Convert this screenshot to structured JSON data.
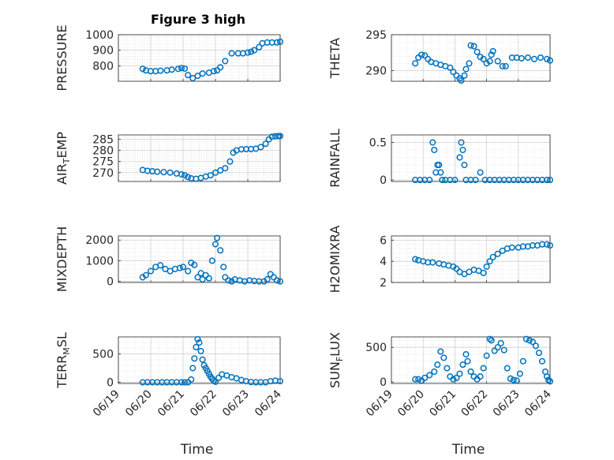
{
  "figure_title": "Figure 3 high",
  "chart_data": [
    {
      "type": "scatter",
      "ylabel": "PRESSURE",
      "ylabel_sub": "",
      "ylabel_tail": "",
      "ylim": [
        700,
        1000
      ],
      "yticks": [
        800,
        900,
        1000
      ],
      "xlim": [
        0,
        5
      ],
      "xticks": [
        0,
        1,
        2,
        3,
        4,
        5
      ],
      "xticklabels": [
        "06/19",
        "06/20",
        "06/21",
        "06/22",
        "06/23",
        "06/24"
      ],
      "xlabel": "",
      "grid": true,
      "x": [
        0.75,
        0.85,
        1.0,
        1.15,
        1.3,
        1.5,
        1.65,
        1.85,
        1.95,
        2.05,
        2.15,
        2.3,
        2.45,
        2.6,
        2.8,
        2.95,
        3.05,
        3.15,
        3.3,
        3.5,
        3.7,
        3.85,
        4.0,
        4.1,
        4.2,
        4.35,
        4.45,
        4.6,
        4.75,
        4.9,
        5.0
      ],
      "y": [
        780,
        770,
        765,
        765,
        768,
        770,
        775,
        780,
        785,
        782,
        740,
        720,
        735,
        750,
        755,
        765,
        770,
        790,
        830,
        880,
        880,
        880,
        885,
        890,
        900,
        920,
        945,
        950,
        950,
        950,
        955
      ]
    },
    {
      "type": "scatter",
      "ylabel": "THETA",
      "ylabel_sub": "",
      "ylabel_tail": "",
      "ylim": [
        288.5,
        295
      ],
      "yticks": [
        290,
        295
      ],
      "xlim": [
        0,
        5
      ],
      "xticks": [
        0,
        1,
        2,
        3,
        4,
        5
      ],
      "xticklabels": [
        "06/19",
        "06/20",
        "06/21",
        "06/22",
        "06/23",
        "06/24"
      ],
      "xlabel": "",
      "grid": true,
      "x": [
        0.75,
        0.85,
        0.95,
        1.05,
        1.15,
        1.25,
        1.4,
        1.55,
        1.7,
        1.85,
        1.95,
        2.05,
        2.15,
        2.2,
        2.3,
        2.35,
        2.45,
        2.5,
        2.6,
        2.7,
        2.8,
        2.9,
        3.0,
        3.1,
        3.15,
        3.2,
        3.35,
        3.5,
        3.6,
        3.8,
        3.95,
        4.1,
        4.3,
        4.5,
        4.7,
        4.9,
        5.0
      ],
      "y": [
        291,
        291.8,
        292.2,
        292.1,
        291.6,
        291.2,
        291.0,
        290.8,
        290.6,
        290.4,
        289.8,
        289.3,
        288.9,
        288.6,
        289.3,
        290.2,
        291.0,
        293.5,
        293.4,
        292.6,
        291.9,
        291.6,
        291.0,
        291.3,
        292.2,
        292.7,
        291.3,
        290.6,
        290.6,
        291.8,
        291.8,
        291.7,
        291.8,
        291.6,
        291.8,
        291.6,
        291.4
      ]
    },
    {
      "type": "scatter",
      "ylabel": "AIR",
      "ylabel_sub": "T",
      "ylabel_tail": "EMP",
      "ylim": [
        266,
        287
      ],
      "yticks": [
        270,
        275,
        280,
        285
      ],
      "xlim": [
        0,
        5
      ],
      "xticks": [
        0,
        1,
        2,
        3,
        4,
        5
      ],
      "xticklabels": [
        "06/19",
        "06/20",
        "06/21",
        "06/22",
        "06/23",
        "06/24"
      ],
      "xlabel": "",
      "grid": true,
      "x": [
        0.75,
        0.9,
        1.05,
        1.2,
        1.4,
        1.6,
        1.8,
        1.95,
        2.05,
        2.15,
        2.25,
        2.4,
        2.55,
        2.7,
        2.85,
        3.0,
        3.15,
        3.3,
        3.45,
        3.55,
        3.65,
        3.8,
        3.95,
        4.1,
        4.25,
        4.4,
        4.55,
        4.65,
        4.75,
        4.85,
        4.95,
        5.0
      ],
      "y": [
        271.2,
        270.8,
        270.6,
        270.4,
        270.2,
        270.0,
        269.6,
        269.2,
        268.8,
        268.0,
        267.4,
        267.2,
        267.6,
        268.2,
        268.8,
        270.0,
        271.0,
        272.0,
        275.0,
        279.0,
        280.0,
        280.5,
        280.6,
        280.6,
        280.8,
        281.5,
        283.0,
        285.0,
        286.2,
        286.4,
        286.5,
        286.5
      ]
    },
    {
      "type": "scatter",
      "ylabel": "RAINFALL",
      "ylabel_sub": "",
      "ylabel_tail": "",
      "ylim": [
        -0.02,
        0.6
      ],
      "yticks": [
        0,
        0.5
      ],
      "xlim": [
        0,
        5
      ],
      "xticks": [
        0,
        1,
        2,
        3,
        4,
        5
      ],
      "xticklabels": [
        "06/19",
        "06/20",
        "06/21",
        "06/22",
        "06/23",
        "06/24"
      ],
      "xlabel": "",
      "grid": true,
      "x": [
        0.75,
        0.9,
        1.05,
        1.2,
        1.3,
        1.35,
        1.4,
        1.45,
        1.5,
        1.55,
        1.6,
        1.7,
        1.85,
        2.0,
        2.15,
        2.2,
        2.25,
        2.3,
        2.35,
        2.5,
        2.65,
        2.8,
        2.95,
        3.1,
        3.25,
        3.4,
        3.55,
        3.7,
        3.85,
        4.0,
        4.15,
        4.3,
        4.45,
        4.6,
        4.75,
        4.9,
        5.0
      ],
      "y": [
        0,
        0,
        0,
        0,
        0.5,
        0.4,
        0.1,
        0.2,
        0.2,
        0.1,
        0,
        0,
        0,
        0,
        0.3,
        0.5,
        0.4,
        0.2,
        0,
        0,
        0,
        0.1,
        0,
        0,
        0,
        0,
        0,
        0,
        0,
        0,
        0,
        0,
        0,
        0,
        0,
        0,
        0
      ]
    },
    {
      "type": "scatter",
      "ylabel": "MIXDEPTH",
      "ylabel_sub": "",
      "ylabel_tail": "",
      "ylim": [
        -50,
        2200
      ],
      "yticks": [
        0,
        1000,
        2000
      ],
      "xlim": [
        0,
        5
      ],
      "xticks": [
        0,
        1,
        2,
        3,
        4,
        5
      ],
      "xticklabels": [
        "06/19",
        "06/20",
        "06/21",
        "06/22",
        "06/23",
        "06/24"
      ],
      "xlabel": "",
      "grid": true,
      "x": [
        0.75,
        0.85,
        1.0,
        1.15,
        1.3,
        1.45,
        1.6,
        1.75,
        1.9,
        2.0,
        2.15,
        2.25,
        2.35,
        2.45,
        2.55,
        2.6,
        2.7,
        2.8,
        2.9,
        3.0,
        3.05,
        3.15,
        3.25,
        3.3,
        3.4,
        3.5,
        3.6,
        3.75,
        3.9,
        4.05,
        4.2,
        4.35,
        4.5,
        4.6,
        4.7,
        4.8,
        4.9,
        5.0
      ],
      "y": [
        200,
        300,
        500,
        700,
        780,
        600,
        500,
        600,
        650,
        700,
        500,
        900,
        800,
        200,
        400,
        100,
        300,
        150,
        1000,
        1800,
        2100,
        1500,
        700,
        200,
        50,
        0,
        100,
        50,
        0,
        50,
        20,
        0,
        0,
        100,
        350,
        200,
        50,
        0
      ]
    },
    {
      "type": "scatter",
      "ylabel": "H2OMIXRA",
      "ylabel_sub": "",
      "ylabel_tail": "",
      "ylim": [
        2,
        6.4
      ],
      "yticks": [
        2,
        4,
        6
      ],
      "xlim": [
        0,
        5
      ],
      "xticks": [
        0,
        1,
        2,
        3,
        4,
        5
      ],
      "xticklabels": [
        "06/19",
        "06/20",
        "06/21",
        "06/22",
        "06/23",
        "06/24"
      ],
      "xlabel": "",
      "grid": true,
      "x": [
        0.75,
        0.85,
        1.0,
        1.15,
        1.3,
        1.5,
        1.65,
        1.8,
        1.95,
        2.05,
        2.15,
        2.3,
        2.45,
        2.6,
        2.75,
        2.9,
        3.0,
        3.1,
        3.2,
        3.35,
        3.5,
        3.65,
        3.8,
        4.0,
        4.15,
        4.3,
        4.45,
        4.6,
        4.75,
        4.9,
        5.0
      ],
      "y": [
        4.2,
        4.1,
        4.0,
        3.9,
        3.9,
        3.8,
        3.7,
        3.6,
        3.5,
        3.3,
        3.0,
        2.8,
        3.0,
        3.2,
        3.1,
        2.9,
        3.5,
        4.0,
        4.4,
        4.7,
        5.0,
        5.2,
        5.3,
        5.3,
        5.4,
        5.4,
        5.5,
        5.5,
        5.6,
        5.6,
        5.5
      ]
    },
    {
      "type": "scatter",
      "ylabel": "TERR",
      "ylabel_sub": "M",
      "ylabel_tail": "SL",
      "ylim": [
        -20,
        800
      ],
      "yticks": [
        0,
        500
      ],
      "xlim": [
        0,
        5
      ],
      "xticks": [
        0,
        1,
        2,
        3,
        4,
        5
      ],
      "xticklabels": [
        "06/19",
        "06/20",
        "06/21",
        "06/22",
        "06/23",
        "06/24"
      ],
      "xlabel": "Time",
      "grid": true,
      "x": [
        0.75,
        0.9,
        1.05,
        1.2,
        1.35,
        1.5,
        1.65,
        1.8,
        1.95,
        2.05,
        2.15,
        2.25,
        2.3,
        2.35,
        2.4,
        2.45,
        2.5,
        2.55,
        2.6,
        2.65,
        2.7,
        2.75,
        2.8,
        2.85,
        2.9,
        2.95,
        3.0,
        3.1,
        3.2,
        3.35,
        3.5,
        3.65,
        3.8,
        3.95,
        4.1,
        4.25,
        4.4,
        4.55,
        4.7,
        4.85,
        5.0
      ],
      "y": [
        0,
        0,
        0,
        0,
        0,
        0,
        0,
        0,
        0,
        0,
        0,
        50,
        250,
        420,
        620,
        760,
        700,
        550,
        400,
        300,
        250,
        200,
        150,
        100,
        60,
        30,
        10,
        80,
        140,
        120,
        90,
        70,
        40,
        20,
        5,
        0,
        0,
        0,
        20,
        30,
        20
      ]
    },
    {
      "type": "scatter",
      "ylabel": "SUN",
      "ylabel_sub": "F",
      "ylabel_tail": "LUX",
      "ylim": [
        -20,
        650
      ],
      "yticks": [
        0,
        500
      ],
      "xlim": [
        0,
        5
      ],
      "xticks": [
        0,
        1,
        2,
        3,
        4,
        5
      ],
      "xticklabels": [
        "06/19",
        "06/20",
        "06/21",
        "06/22",
        "06/23",
        "06/24"
      ],
      "xlabel": "Time",
      "grid": true,
      "x": [
        0.75,
        0.85,
        0.95,
        1.05,
        1.2,
        1.35,
        1.45,
        1.55,
        1.65,
        1.75,
        1.85,
        1.95,
        2.05,
        2.15,
        2.25,
        2.35,
        2.4,
        2.5,
        2.6,
        2.7,
        2.8,
        2.9,
        3.0,
        3.1,
        3.15,
        3.25,
        3.35,
        3.45,
        3.55,
        3.65,
        3.75,
        3.85,
        3.95,
        4.05,
        4.15,
        4.25,
        4.35,
        4.45,
        4.55,
        4.65,
        4.75,
        4.85,
        4.9,
        4.95,
        5.0
      ],
      "y": [
        40,
        40,
        20,
        60,
        100,
        150,
        250,
        440,
        350,
        200,
        80,
        40,
        60,
        120,
        250,
        400,
        300,
        150,
        80,
        40,
        80,
        200,
        380,
        620,
        600,
        450,
        500,
        560,
        460,
        200,
        50,
        30,
        20,
        120,
        300,
        620,
        600,
        580,
        520,
        420,
        300,
        150,
        80,
        30,
        10
      ]
    }
  ]
}
